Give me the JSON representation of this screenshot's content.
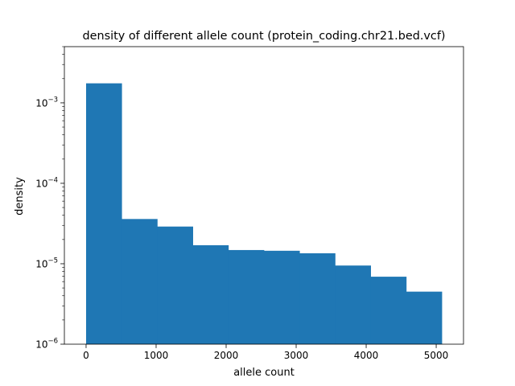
{
  "chart_data": {
    "type": "bar",
    "title": "density of different allele count (protein_coding.chr21.bed.vcf)",
    "xlabel": "allele count",
    "ylabel": "density",
    "xlim": [
      -310,
      5390
    ],
    "ylim": [
      1e-06,
      0.005
    ],
    "y_scale": "log",
    "x_ticks": [
      {
        "value": 0,
        "label": "0"
      },
      {
        "value": 1000,
        "label": "1000"
      },
      {
        "value": 2000,
        "label": "2000"
      },
      {
        "value": 3000,
        "label": "3000"
      },
      {
        "value": 4000,
        "label": "4000"
      },
      {
        "value": 5000,
        "label": "5000"
      }
    ],
    "y_ticks": [
      {
        "value": 1e-06,
        "base": "10",
        "exp": "−6"
      },
      {
        "value": 1e-05,
        "base": "10",
        "exp": "−5"
      },
      {
        "value": 0.0001,
        "base": "10",
        "exp": "−4"
      },
      {
        "value": 0.001,
        "base": "10",
        "exp": "−3"
      }
    ],
    "bin_edges": [
      0,
      508,
      1016,
      1524,
      2032,
      2540,
      3048,
      3556,
      4064,
      4572,
      5080
    ],
    "values": [
      0.00175,
      3.6e-05,
      2.9e-05,
      1.7e-05,
      1.48e-05,
      1.45e-05,
      1.35e-05,
      9.5e-06,
      6.9e-06,
      4.5e-06
    ],
    "grid": false,
    "color": "#1f77b4"
  }
}
